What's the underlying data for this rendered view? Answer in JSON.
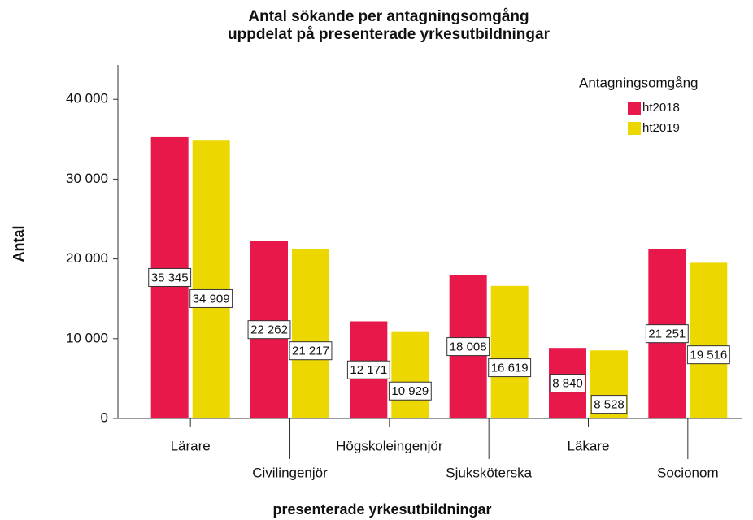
{
  "chart_data": {
    "type": "bar",
    "title": [
      "Antal sökande per antagningsomgång",
      "uppdelat på presenterade yrkesutbildningar"
    ],
    "x_label": "presenterade yrkesutbildningar",
    "y_label": "Antal",
    "legend_title": "Antagningsomgång",
    "legend_position": "upper right",
    "grid": false,
    "categories": [
      "Lärare",
      "Civilingenjör",
      "Högskoleingenjör",
      "Sjuksköterska",
      "Läkare",
      "Socionom"
    ],
    "series": [
      {
        "name": "ht2018",
        "color": "#e8194a",
        "values": [
          35345,
          22262,
          12171,
          18008,
          8840,
          21251
        ],
        "value_labels": [
          "35 345",
          "22 262",
          "12 171",
          "18 008",
          "8 840",
          "21 251"
        ]
      },
      {
        "name": "ht2019",
        "color": "#ecd800",
        "values": [
          34909,
          21217,
          10929,
          16619,
          8528,
          19516
        ],
        "value_labels": [
          "34 909",
          "21 217",
          "10 929",
          "16 619",
          "8 528",
          "19 516"
        ]
      }
    ],
    "ylim": [
      0,
      44300
    ],
    "yticks": [
      0,
      {
        "value": 10000,
        "label": "10 000"
      },
      {
        "value": 20000,
        "label": "20 000"
      },
      {
        "value": 30000,
        "label": "30 000"
      },
      {
        "value": 40000,
        "label": "40 000"
      }
    ]
  }
}
